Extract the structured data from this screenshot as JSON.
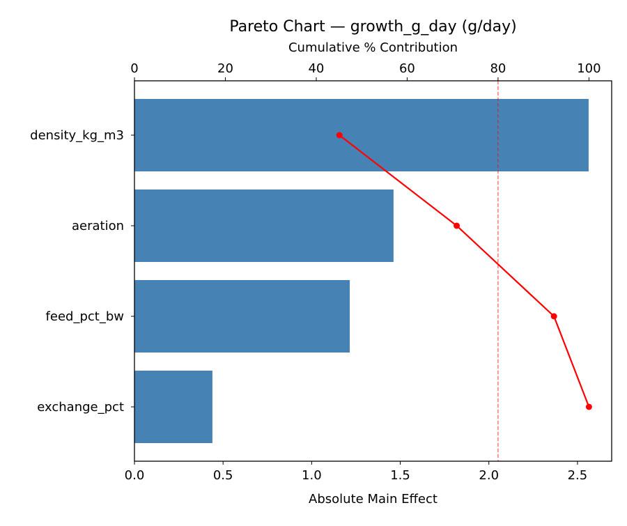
{
  "chart_data": {
    "type": "bar",
    "orientation": "horizontal",
    "title": "Pareto Chart — growth_g_day (g/day)",
    "xlabel": "Absolute Main Effect",
    "x2label": "Cumulative % Contribution",
    "ylabel": "",
    "categories": [
      "density_kg_m3",
      "aeration",
      "feed_pct_bw",
      "exchange_pct"
    ],
    "values": [
      2.563,
      1.462,
      1.215,
      0.44
    ],
    "cumulative_pct": [
      45.1,
      70.9,
      92.3,
      100.0
    ],
    "xlim": [
      0,
      2.693
    ],
    "x2lim": [
      0,
      105
    ],
    "xticks": [
      "0.0",
      "0.5",
      "1.0",
      "1.5",
      "2.0",
      "2.5"
    ],
    "x2ticks": [
      "0",
      "20",
      "40",
      "60",
      "80",
      "100"
    ],
    "threshold_pct": 80,
    "grid": false,
    "colors": {
      "bars": "#4682b4",
      "cumulative_line": "#ff0000",
      "threshold": "#ff0000"
    }
  }
}
